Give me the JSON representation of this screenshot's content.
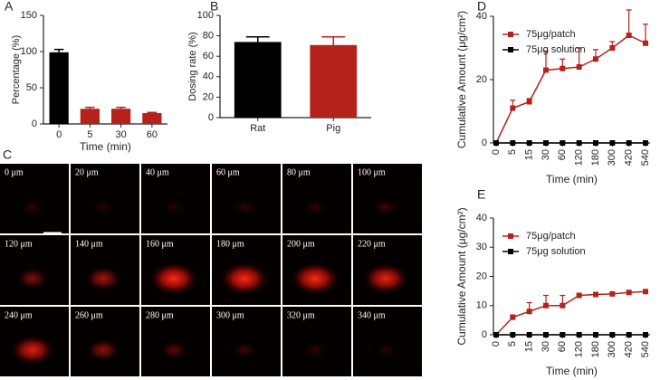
{
  "chart_data": [
    {
      "label": "A",
      "type": "bar",
      "y_label": "Percentage (%)",
      "x_label": "Time (min)",
      "categories": [
        "0",
        "5",
        "30",
        "60"
      ],
      "values": [
        99,
        21,
        21,
        15
      ],
      "errors": [
        4,
        2,
        2,
        1
      ],
      "colors": [
        "#000000",
        "#b5221b",
        "#b5221b",
        "#b5221b"
      ],
      "ylim": [
        0,
        150
      ],
      "yticks": [
        0,
        50,
        100,
        150
      ]
    },
    {
      "label": "B",
      "type": "bar",
      "y_label": "Dosing rate (%)",
      "categories": [
        "Rat",
        "Pig"
      ],
      "values": [
        74,
        71
      ],
      "errors": [
        5,
        8
      ],
      "colors": [
        "#000000",
        "#b5221b"
      ],
      "ylim": [
        0,
        100
      ],
      "yticks": [
        0,
        20,
        40,
        60,
        80,
        100
      ]
    },
    {
      "label": "D",
      "type": "line",
      "y_label": "Cumulative Amount (μg/cm²)",
      "x_label": "Time (min)",
      "categories": [
        "0",
        "5",
        "15",
        "30",
        "60",
        "120",
        "180",
        "300",
        "420",
        "540"
      ],
      "series": [
        {
          "name": "75μg/patch",
          "color": "#b5221b",
          "values": [
            0,
            11,
            13,
            23,
            23.5,
            24,
            26.5,
            30,
            34,
            31.5
          ],
          "errors": [
            0,
            2.5,
            1,
            6,
            3,
            6,
            3,
            2,
            8,
            6
          ]
        },
        {
          "name": "75μg solution",
          "color": "#000000",
          "values": [
            0,
            0,
            0,
            0,
            0,
            0,
            0,
            0,
            0,
            0
          ]
        }
      ],
      "ylim": [
        0,
        40
      ],
      "yticks": [
        0,
        20,
        40
      ],
      "legend": "upper left"
    },
    {
      "label": "E",
      "type": "line",
      "y_label": "Cumulative Amount (μg/cm²)",
      "x_label": "Time (min)",
      "categories": [
        "0",
        "5",
        "15",
        "30",
        "60",
        "120",
        "180",
        "300",
        "420",
        "540"
      ],
      "series": [
        {
          "name": "75μg/patch",
          "color": "#b5221b",
          "values": [
            0,
            6,
            8,
            10,
            10,
            13.5,
            13.8,
            14,
            14.5,
            14.8
          ],
          "errors": [
            0,
            0.8,
            3,
            3.5,
            3.5,
            0.5,
            0.5,
            0.3,
            0.5,
            0.4
          ]
        },
        {
          "name": "75μg solution",
          "color": "#000000",
          "values": [
            0,
            0,
            0,
            0,
            0,
            0,
            0,
            0,
            0,
            0
          ]
        }
      ],
      "ylim": [
        0,
        40
      ],
      "yticks": [
        0,
        10,
        20,
        30,
        40
      ],
      "legend": "upper left"
    }
  ],
  "image_panel": {
    "label": "C",
    "depths": [
      "0 μm",
      "20 μm",
      "40 μm",
      "60 μm",
      "80 μm",
      "100 μm",
      "120 μm",
      "140 μm",
      "160 μm",
      "180 μm",
      "200 μm",
      "220 μm",
      "240 μm",
      "260 μm",
      "280 μm",
      "300 μm",
      "320 μm",
      "340 μm"
    ]
  }
}
